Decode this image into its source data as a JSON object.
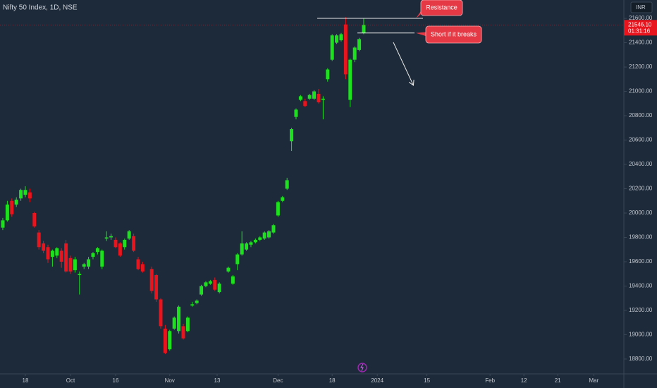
{
  "chart_data": {
    "type": "candlestick",
    "title": "Nifty 50 Index, 1D, NSE",
    "currency": "INR",
    "up_color": "#1ee01e",
    "down_color": "#e8141e",
    "x": [
      -5,
      -4,
      -3,
      -2,
      -1,
      0,
      1,
      2,
      3,
      4,
      5,
      6,
      7,
      8,
      9,
      10,
      11,
      12,
      13,
      14,
      15,
      16,
      17,
      18,
      19,
      20,
      21,
      22,
      23,
      24,
      25,
      26,
      28,
      29,
      30,
      31,
      32,
      33,
      34,
      35,
      36,
      37,
      38,
      39,
      40,
      41,
      42,
      43,
      45,
      46,
      47,
      48,
      49,
      50,
      51,
      52,
      53,
      54,
      55,
      56,
      57,
      58,
      59,
      60,
      61,
      62,
      63,
      64,
      65,
      66,
      67,
      68,
      69,
      70,
      71,
      72,
      73,
      74,
      75
    ],
    "open": [
      19880,
      19940,
      20100,
      20070,
      20120,
      20150,
      20170,
      20000,
      19840,
      19750,
      19720,
      19640,
      19650,
      19690,
      19750,
      19630,
      19530,
      19490,
      19560,
      19560,
      19640,
      19680,
      19560,
      19790,
      19800,
      19780,
      19750,
      19720,
      19790,
      19810,
      19620,
      19580,
      19540,
      19490,
      19290,
      19050,
      18880,
      19050,
      19030,
      19070,
      19030,
      19240,
      19260,
      19330,
      19400,
      19420,
      19450,
      19350,
      19520,
      19420,
      19580,
      19660,
      19700,
      19740,
      19760,
      19780,
      19790,
      19800,
      19840,
      19980,
      20100,
      20200,
      20590,
      20790,
      20930,
      20920,
      20940,
      20940,
      20980,
      20930,
      21100,
      21260,
      21400,
      21420,
      21550,
      20930,
      21260,
      21340,
      21480
    ],
    "high": [
      19960,
      20100,
      20120,
      20130,
      20200,
      20220,
      20200,
      20010,
      19860,
      19770,
      19740,
      19700,
      19720,
      19710,
      19780,
      19650,
      19640,
      19520,
      19590,
      19640,
      19680,
      19720,
      19700,
      19850,
      19830,
      19800,
      19760,
      19790,
      19860,
      19830,
      19640,
      19600,
      19560,
      19500,
      19300,
      19080,
      19040,
      19150,
      19240,
      19090,
      19150,
      19270,
      19290,
      19410,
      19440,
      19450,
      19470,
      19430,
      19560,
      19490,
      19670,
      19850,
      19760,
      19770,
      19790,
      19810,
      19850,
      19860,
      19910,
      20100,
      20140,
      20290,
      20700,
      20860,
      20970,
      20940,
      20980,
      21010,
      21020,
      20960,
      21190,
      21470,
      21470,
      21480,
      21610,
      21270,
      21370,
      21440,
      21600
    ],
    "low": [
      19860,
      19930,
      19970,
      20050,
      20100,
      20130,
      20090,
      19880,
      19700,
      19670,
      19590,
      19560,
      19630,
      19550,
      19510,
      19500,
      19510,
      19330,
      19540,
      19540,
      19620,
      19660,
      19540,
      19770,
      19780,
      19710,
      19640,
      19700,
      19780,
      19680,
      19530,
      19510,
      19340,
      19270,
      19050,
      18840,
      18870,
      19040,
      19010,
      18960,
      19020,
      19230,
      19250,
      19320,
      19390,
      19410,
      19360,
      19340,
      19510,
      19410,
      19530,
      19650,
      19690,
      19720,
      19750,
      19770,
      19780,
      19790,
      19830,
      19970,
      20090,
      20190,
      20510,
      20770,
      20920,
      20870,
      20930,
      20930,
      20900,
      20770,
      21080,
      21250,
      21390,
      21410,
      21100,
      20870,
      21240,
      21330,
      21470
    ],
    "close": [
      19940,
      20070,
      19990,
      20110,
      20190,
      20190,
      20120,
      19890,
      19720,
      19690,
      19620,
      19690,
      19710,
      19600,
      19520,
      19520,
      19620,
      19500,
      19580,
      19620,
      19670,
      19710,
      19690,
      19800,
      19810,
      19720,
      19650,
      19780,
      19850,
      19690,
      19540,
      19520,
      19360,
      19290,
      19070,
      18850,
      19030,
      19140,
      19230,
      18970,
      19140,
      19250,
      19280,
      19400,
      19430,
      19440,
      19370,
      19420,
      19550,
      19480,
      19660,
      19750,
      19750,
      19760,
      19780,
      19800,
      19840,
      19850,
      19900,
      20090,
      20130,
      20270,
      20690,
      20850,
      20960,
      20880,
      20970,
      21000,
      20910,
      20940,
      21180,
      21460,
      21460,
      21470,
      21140,
      21260,
      21360,
      21430,
      21546.1
    ],
    "last_price": {
      "value": 21546.1,
      "label": "21546.10"
    },
    "countdown": "01:31:16",
    "ylim": [
      18678,
      21751
    ],
    "yticks": [
      {
        "value": 18800,
        "label": "18800.00"
      },
      {
        "value": 19000,
        "label": "19000.00"
      },
      {
        "value": 19200,
        "label": "19200.00"
      },
      {
        "value": 19400,
        "label": "19400.00"
      },
      {
        "value": 19600,
        "label": "19600.00"
      },
      {
        "value": 19800,
        "label": "19800.00"
      },
      {
        "value": 20000,
        "label": "20000.00"
      },
      {
        "value": 20200,
        "label": "20200.00"
      },
      {
        "value": 20400,
        "label": "20400.00"
      },
      {
        "value": 20600,
        "label": "20600.00"
      },
      {
        "value": 20800,
        "label": "20800.00"
      },
      {
        "value": 21000,
        "label": "21000.00"
      },
      {
        "value": 21200,
        "label": "21200.00"
      },
      {
        "value": 21400,
        "label": "21400.00"
      },
      {
        "value": 21600,
        "label": "21600.00"
      }
    ],
    "xlim": [
      -5.625,
      132.66
    ],
    "xticks": [
      {
        "value": 0,
        "label": "18"
      },
      {
        "value": 10,
        "label": "Oct"
      },
      {
        "value": 20,
        "label": "16"
      },
      {
        "value": 32,
        "label": "Nov"
      },
      {
        "value": 42.5,
        "label": "13"
      },
      {
        "value": 56,
        "label": "Dec"
      },
      {
        "value": 68,
        "label": "18"
      },
      {
        "value": 78,
        "label": "2024"
      },
      {
        "value": 89,
        "label": "15"
      },
      {
        "value": 103,
        "label": "Feb"
      },
      {
        "value": 110.5,
        "label": "12"
      },
      {
        "value": 118,
        "label": "21"
      },
      {
        "value": 126,
        "label": "Mar"
      }
    ],
    "grid": false,
    "annotations": [
      {
        "text": "Resistance",
        "value": 21600
      },
      {
        "text": "Short if it breaks",
        "value": 21480
      }
    ]
  }
}
